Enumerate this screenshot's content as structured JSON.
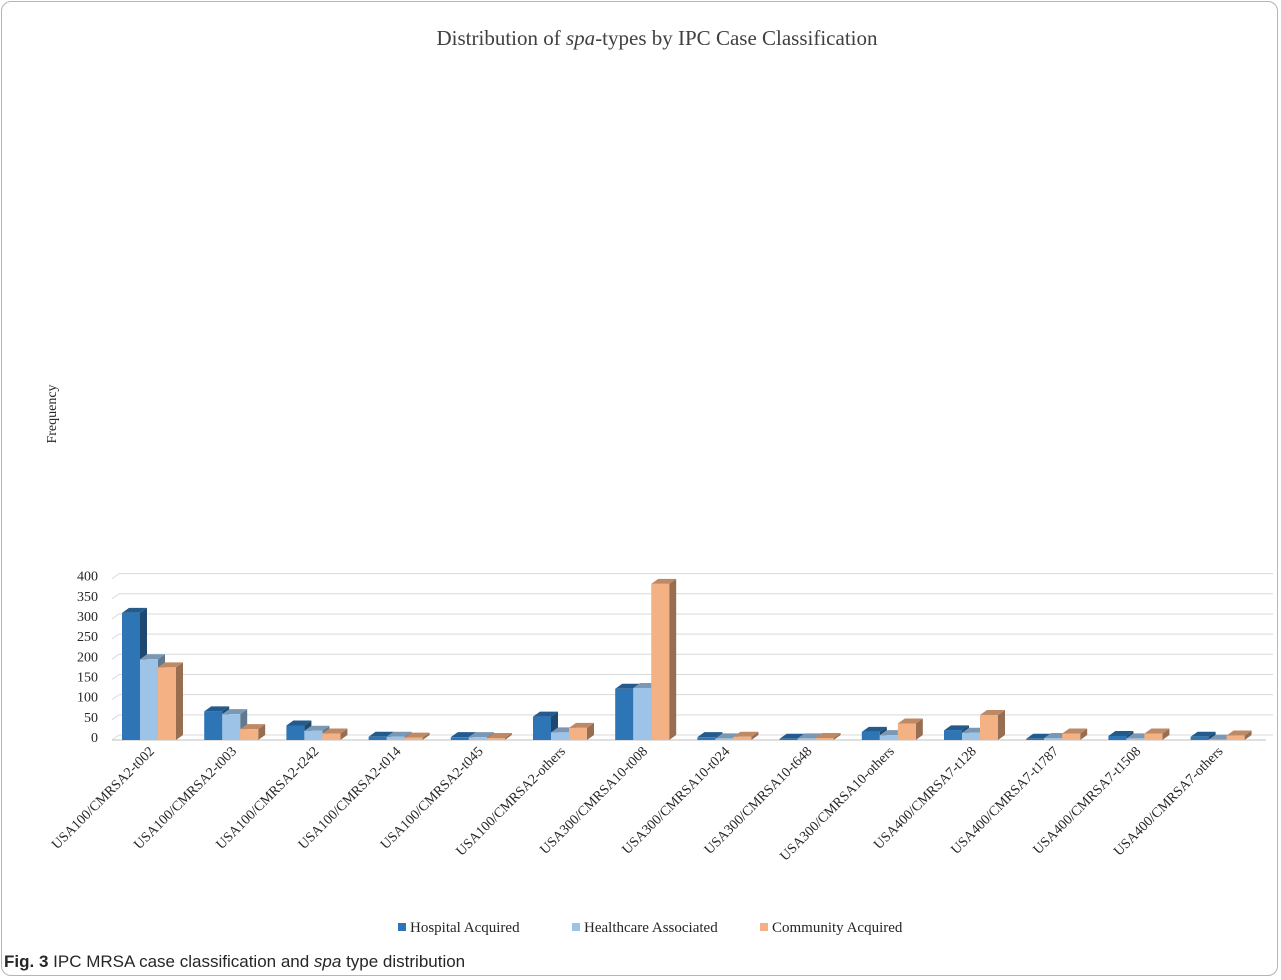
{
  "chart_data": {
    "type": "bar",
    "title_parts": [
      "Distribution of ",
      "spa",
      "-types by IPC Case Classification"
    ],
    "xlabel": "",
    "ylabel": "Frequency",
    "ylim": [
      0,
      400
    ],
    "yticks": [
      0,
      50,
      100,
      150,
      200,
      250,
      300,
      350,
      400
    ],
    "grid": true,
    "legend_position": "bottom",
    "categories": [
      "USA100/CMRSA2-t002",
      "USA100/CMRSA2-t003",
      "USA100/CMRSA2-t242",
      "USA100/CMRSA2-t014",
      "USA100/CMRSA2-t045",
      "USA100/CMRSA2-others",
      "USA300/CMRSA10-t008",
      "USA300/CMRSA10-t024",
      "USA300/CMRSA10-t648",
      "USA300/CMRSA10-others",
      "USA400/CMRSA7-t128",
      "USA400/CMRSA7-t1787",
      "USA400/CMRSA7-t1508",
      "USA400/CMRSA7-others"
    ],
    "series": [
      {
        "name": "Hospital Acquired",
        "color": "#2e75b6",
        "values": [
          315,
          71,
          36,
          8,
          7,
          58,
          127,
          7,
          3,
          20,
          24,
          3,
          10,
          8
        ]
      },
      {
        "name": "Healthcare Associated",
        "color": "#9dc3e6",
        "values": [
          200,
          64,
          23,
          8,
          7,
          19,
          129,
          4,
          4,
          12,
          18,
          5,
          4,
          1
        ]
      },
      {
        "name": "Community Acquired",
        "color": "#f4b183",
        "values": [
          180,
          27,
          16,
          6,
          5,
          30,
          387,
          8,
          5,
          41,
          62,
          16,
          16,
          11
        ]
      }
    ]
  },
  "caption": {
    "fig_label": "Fig. 3",
    "text_before": " IPC MRSA case classification and ",
    "text_italic": "spa",
    "text_after": " type distribution"
  }
}
